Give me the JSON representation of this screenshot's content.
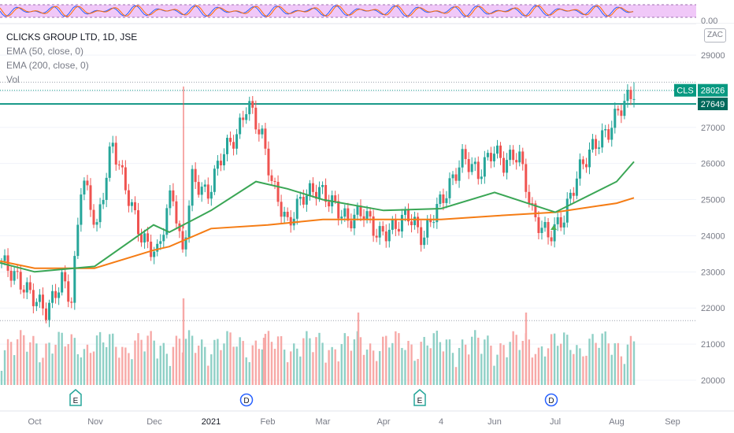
{
  "symbol": {
    "title": "CLICKS GROUP LTD, 1D, JSE",
    "ticker_label": "CLS",
    "currency": "ZAC",
    "price_badge": "28026",
    "level_badge": "27649"
  },
  "indicators": {
    "ema50_label": "EMA (50, close, 0)",
    "ema200_label": "EMA (200, close, 0)",
    "vol_label": "Vol",
    "osc_scale_label": "0.00"
  },
  "colors": {
    "up": "#26a69a",
    "down": "#ef5350",
    "up_volume": "#8fd0c6",
    "down_volume": "#f7a9a7",
    "ema50": "#3aa655",
    "ema200": "#f57c14",
    "level": "#1a9a8a",
    "osc_band": "#f0c8f8",
    "badge_bg": "#089981"
  },
  "chart_data": {
    "type": "candlestick",
    "title": "CLICKS GROUP LTD, 1D, JSE",
    "currency": "ZAC",
    "y_axis_ticks": [
      29000,
      28000,
      27000,
      26000,
      25000,
      24000,
      23000,
      22000,
      21000,
      20000
    ],
    "x_axis_ticks": [
      "Oct",
      "Nov",
      "Dec",
      "2021",
      "Feb",
      "Mar",
      "Apr",
      "4",
      "Jun",
      "Jul",
      "Aug",
      "Sep"
    ],
    "ylim": [
      19600,
      29300
    ],
    "last_price": 28026,
    "horizontal_level": 27649,
    "period_high": 28250,
    "period_low": 21650,
    "ema50_path": [
      [
        23250,
        23000,
        "Sep"
      ],
      [
        23000,
        23000,
        "Oct"
      ],
      [
        23150,
        23150,
        "Nov"
      ],
      [
        24300,
        24300,
        "Dec"
      ],
      [
        24100,
        24100,
        "Dec-mid"
      ],
      [
        24700,
        24700,
        "2021"
      ],
      [
        25500,
        25500,
        "Jan-end"
      ],
      [
        25300,
        25300,
        "Feb-mid"
      ],
      [
        25000,
        25000,
        "Mar"
      ],
      [
        24700,
        24700,
        "Apr"
      ],
      [
        24750,
        24750,
        "May"
      ],
      [
        25200,
        25200,
        "Jun"
      ],
      [
        24650,
        24650,
        "Jul"
      ],
      [
        25500,
        25500,
        "Aug"
      ],
      [
        26050,
        26050,
        "Aug-end"
      ]
    ],
    "ema200_path": [
      [
        23300,
        23300,
        "Sep"
      ],
      [
        23100,
        23100,
        "Oct"
      ],
      [
        23100,
        23100,
        "Nov"
      ],
      [
        23600,
        23600,
        "Dec"
      ],
      [
        23700,
        23700,
        "Dec-mid"
      ],
      [
        24200,
        24200,
        "2021"
      ],
      [
        24300,
        24300,
        "Feb"
      ],
      [
        24450,
        24450,
        "Mar"
      ],
      [
        24450,
        24450,
        "Apr"
      ],
      [
        24450,
        24450,
        "May"
      ],
      [
        24550,
        24550,
        "Jun"
      ],
      [
        24650,
        24650,
        "Jul"
      ],
      [
        24900,
        24900,
        "Aug"
      ],
      [
        25050,
        25050,
        "Aug-end"
      ]
    ],
    "events": [
      {
        "label": "E",
        "month": "Nov"
      },
      {
        "label": "D",
        "month": "2021"
      },
      {
        "label": "E",
        "month": "4"
      },
      {
        "label": "D",
        "month": "Jul"
      }
    ]
  }
}
